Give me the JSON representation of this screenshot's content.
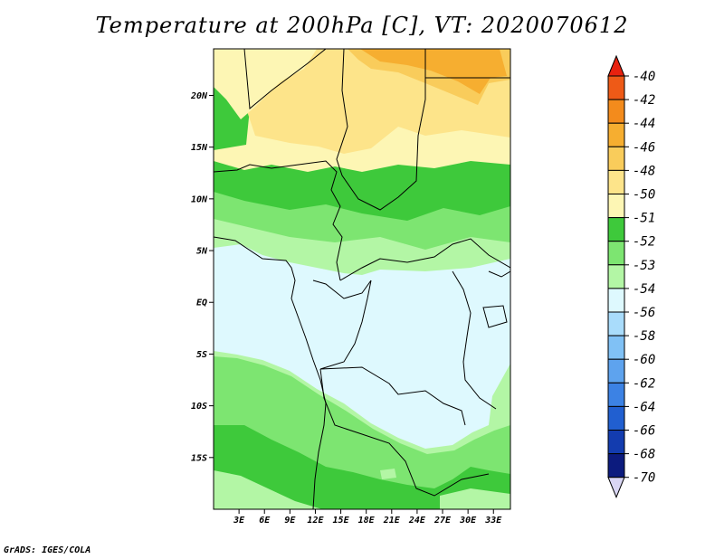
{
  "title": "Temperature at 200hPa [C], VT: 2020070612",
  "footer": "GrADS: IGES/COLA",
  "colors": {
    "c_n40": "#e8220f",
    "c_n42": "#ee5a17",
    "c_n44": "#f38b1c",
    "c_n46": "#f6ae30",
    "c_n48": "#f9cc5b",
    "c_n50": "#fde48a",
    "c_n51": "#fdf6b4",
    "c_n52": "#3ec93b",
    "c_n53": "#7de571",
    "c_n54": "#b3f6a5",
    "c_n56": "#def9fe",
    "c_n58": "#a9dcfb",
    "c_n60": "#80c1f5",
    "c_n62": "#5ea3ee",
    "c_n64": "#3c82e4",
    "c_n66": "#215fd0",
    "c_n68": "#133caf",
    "c_n70": "#0c1b7e",
    "c_under": "#d9d6f4"
  },
  "chart_data": {
    "type": "heatmap",
    "title": "Temperature at 200hPa [C], VT: 2020070612",
    "variable": "Temperature",
    "units": "C",
    "level": "200hPa",
    "valid_time": "2020070612",
    "x_axis": {
      "range": [
        0,
        35
      ],
      "ticks": [
        3,
        6,
        9,
        12,
        15,
        18,
        21,
        24,
        27,
        30,
        33
      ],
      "tick_labels": [
        "3E",
        "6E",
        "9E",
        "12E",
        "15E",
        "18E",
        "21E",
        "24E",
        "27E",
        "30E",
        "33E"
      ]
    },
    "y_axis": {
      "range": [
        -20,
        24.5
      ],
      "ticks": [
        20,
        15,
        10,
        5,
        0,
        -5,
        -10,
        -15
      ],
      "tick_labels": [
        "20N",
        "15N",
        "10N",
        "5N",
        "EQ",
        "5S",
        "10S",
        "15S"
      ]
    },
    "colorbar": {
      "labels": [
        "-40",
        "-42",
        "-44",
        "-46",
        "-48",
        "-50",
        "-51",
        "-52",
        "-53",
        "-54",
        "-56",
        "-58",
        "-60",
        "-62",
        "-64",
        "-66",
        "-68",
        "-70"
      ],
      "colors": [
        "#e8220f",
        "#ee5a17",
        "#f38b1c",
        "#f6ae30",
        "#f9cc5b",
        "#fde48a",
        "#fdf6b4",
        "#3ec93b",
        "#7de571",
        "#b3f6a5",
        "#def9fe",
        "#a9dcfb",
        "#80c1f5",
        "#5ea3ee",
        "#3c82e4",
        "#215fd0",
        "#133caf",
        "#0c1b7e"
      ]
    }
  }
}
